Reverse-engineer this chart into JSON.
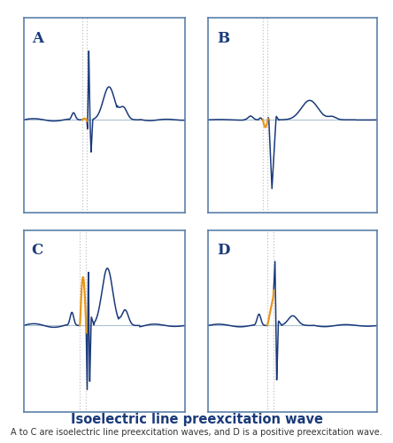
{
  "title": "Isoelectric line preexcitation wave",
  "subtitle": "A to C are isoelectric line preexcitation waves, and D is a positive preexcitation wave.",
  "panel_labels": [
    "A",
    "B",
    "C",
    "D"
  ],
  "background_color": "#ffffff",
  "box_color": "#5b80aa",
  "ecg_color": "#1a3a7a",
  "delta_color": "#e8971e",
  "baseline_color": "#8aaabb",
  "vline_color": "#bbbbbb",
  "title_color": "#1a3a7a",
  "subtitle_color": "#333333",
  "title_fontsize": 10.5,
  "subtitle_fontsize": 7.0
}
